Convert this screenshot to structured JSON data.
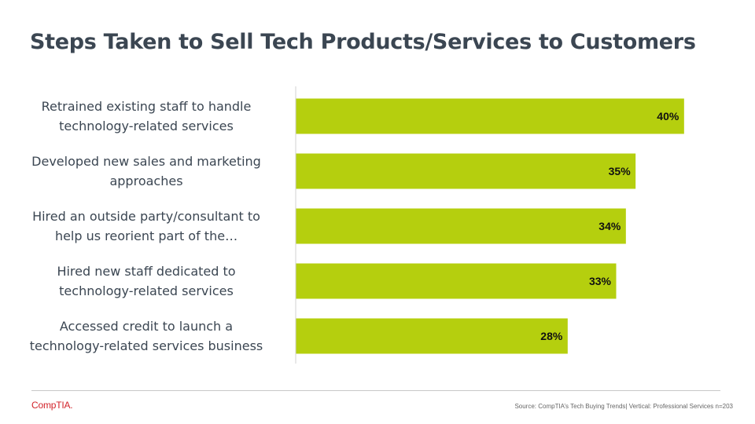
{
  "title": "Steps Taken to Sell Tech Products/Services to Customers",
  "chart_data": {
    "type": "bar",
    "orientation": "horizontal",
    "categories": [
      "Retrained existing staff to handle technology-related services",
      "Developed new sales and marketing approaches",
      "Hired an outside party/consultant to help us reorient part of the…",
      "Hired new staff dedicated to technology-related services",
      "Accessed credit to launch a technology-related services business"
    ],
    "category_lines": [
      [
        "Retrained existing staff to handle",
        "technology-related services"
      ],
      [
        "Developed new sales and marketing",
        "approaches"
      ],
      [
        "Hired an outside party/consultant to",
        "help us reorient part of the…"
      ],
      [
        "Hired new staff dedicated to",
        "technology-related services"
      ],
      [
        "Accessed credit to launch a",
        "technology-related services business"
      ]
    ],
    "values": [
      40,
      35,
      34,
      33,
      28
    ],
    "data_labels": [
      "40%",
      "35%",
      "34%",
      "33%",
      "28%"
    ],
    "unit": "%",
    "xlim": [
      0,
      45
    ],
    "bar_color": "#b5cf0e",
    "grid": false,
    "legend": "none"
  },
  "footer": {
    "logo": "CompTIA.",
    "source": "Source:  CompTIA’s Tech Buying Trends| Vertical:   Professional  Services n=203"
  },
  "colors": {
    "title": "#3b4652",
    "logo": "#d2232a"
  }
}
